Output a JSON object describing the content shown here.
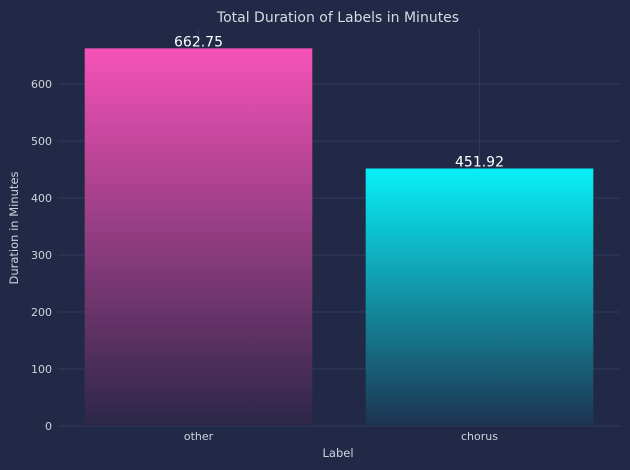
{
  "chart_data": {
    "type": "bar",
    "title": "Total Duration of Labels in Minutes",
    "xlabel": "Label",
    "ylabel": "Duration in Minutes",
    "categories": [
      "other",
      "chorus"
    ],
    "values": [
      662.75,
      451.92
    ],
    "data_labels": [
      "662.75",
      "451.92"
    ],
    "ylim": [
      0,
      695
    ],
    "yticks": [
      0,
      100,
      200,
      300,
      400,
      500,
      600
    ],
    "grid": true,
    "colors": {
      "background": "#212946",
      "bar_gradients": [
        {
          "top": "#f652b8",
          "bottom": "#2c2748"
        },
        {
          "top": "#08f0f8",
          "bottom": "#1d3350"
        }
      ]
    }
  }
}
